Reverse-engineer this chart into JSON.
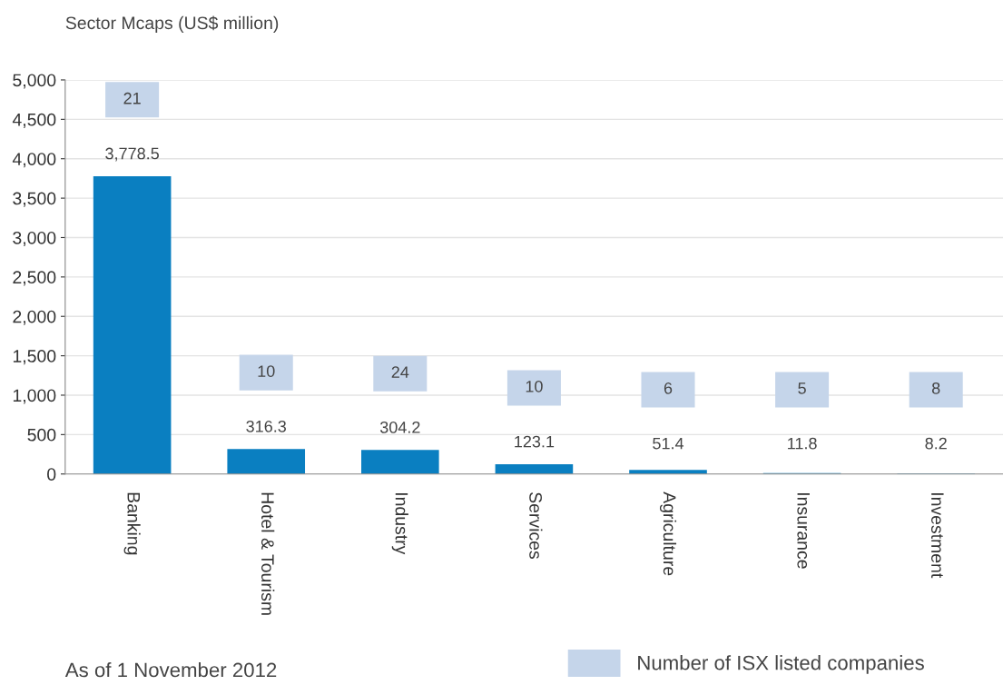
{
  "chart_data": [
    {
      "type": "bar",
      "title": "Sector Mcaps (US$ million)",
      "categories": [
        "Banking",
        "Hotel & Tourism",
        "Industry",
        "Services",
        "Agriculture",
        "Insurance",
        "Investment"
      ],
      "series": [
        {
          "color": "#0a7fc1",
          "values": [
            3778.5,
            316.3,
            304.2,
            123.1,
            51.4,
            11.8,
            8.2
          ],
          "value_labels": [
            "3,778.5",
            "316.3",
            "304.2",
            "123.1",
            "51.4",
            "11.8",
            "8.2"
          ]
        }
      ],
      "ylim": [
        0,
        5000
      ],
      "yticks": [
        0,
        500,
        {
          "value": 1000,
          "label": "1,000"
        },
        {
          "value": 1500,
          "label": "1,500"
        },
        {
          "value": 2000,
          "label": "2,000"
        },
        {
          "value": 2500,
          "label": "2,500"
        },
        {
          "value": 3000,
          "label": "3,000"
        },
        {
          "value": 3500,
          "label": "3,500"
        },
        {
          "value": 4000,
          "label": "4,000"
        },
        {
          "value": 4500,
          "label": "4,500"
        },
        {
          "value": 5000,
          "label": "5,000"
        }
      ],
      "grid": "y",
      "annotations": [
        "As of 1 November 2012"
      ]
    },
    {
      "type": "other",
      "categories": [
        null,
        null,
        null,
        null,
        null,
        null,
        null
      ],
      "series": [
        {
          "name": "Number of ISX listed companies",
          "color": "#c5d5ea",
          "values": [
            21,
            10,
            24,
            10,
            6,
            5,
            8
          ]
        }
      ],
      "data_labels": true,
      "legend": "bottom right"
    }
  ]
}
